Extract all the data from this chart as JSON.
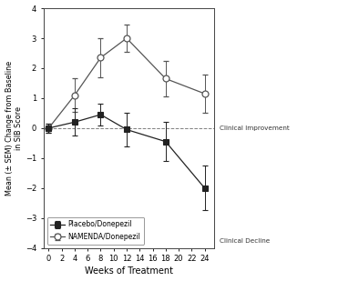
{
  "weeks": [
    0,
    4,
    8,
    12,
    18,
    24
  ],
  "placebo_donepezil_y": [
    0.0,
    0.2,
    0.45,
    -0.05,
    -0.45,
    -2.0
  ],
  "placebo_donepezil_err": [
    0.15,
    0.45,
    0.35,
    0.55,
    0.65,
    0.75
  ],
  "namenda_donepezil_y": [
    0.0,
    1.1,
    2.35,
    3.0,
    1.65,
    1.15
  ],
  "namenda_donepezil_err": [
    0.15,
    0.55,
    0.65,
    0.45,
    0.6,
    0.65
  ],
  "placebo_color": "#222222",
  "namenda_color": "#555555",
  "xlabel": "Weeks of Treatment",
  "ylabel": "Mean (± SEM) Change from Baseline\nin SIB Score",
  "ylim": [
    -4,
    4
  ],
  "xlim": [
    -0.8,
    25.5
  ],
  "xticks": [
    0,
    2,
    4,
    6,
    8,
    10,
    12,
    14,
    16,
    18,
    20,
    22,
    24
  ],
  "yticks": [
    -4,
    -3,
    -2,
    -1,
    0,
    1,
    2,
    3,
    4
  ],
  "legend_placebo": "Placebo/Donepezil",
  "legend_namenda": "NAMENDA/Donepezil",
  "clinical_improvement_text": "Clinical Improvement",
  "clinical_decline_text": "Clinical Decline",
  "background_color": "#ffffff"
}
